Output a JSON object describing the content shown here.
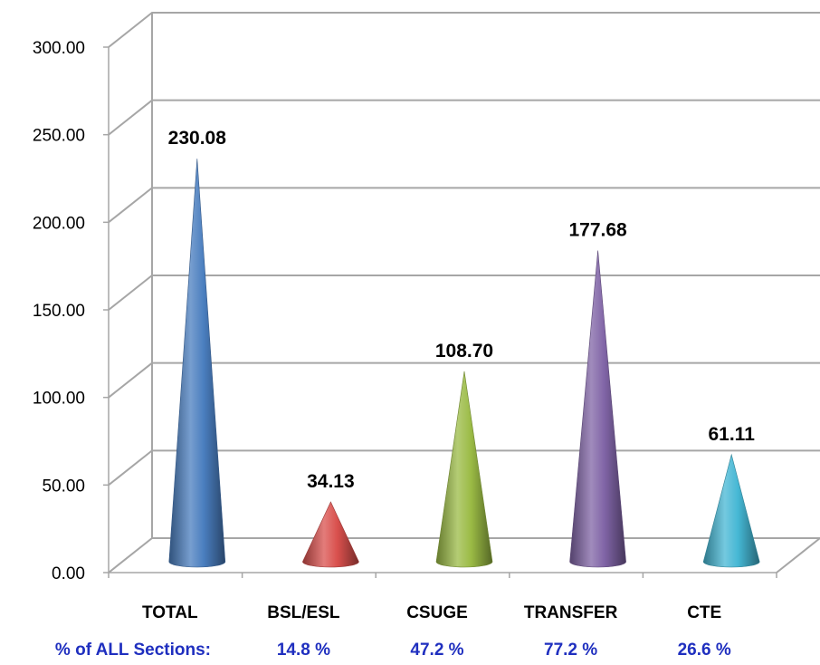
{
  "chart_data": {
    "type": "bar",
    "style": "3d-cone",
    "categories": [
      "TOTAL",
      "BSL/ESL",
      "CSUGE",
      "TRANSFER",
      "CTE"
    ],
    "values": [
      230.08,
      34.13,
      108.7,
      177.68,
      61.11
    ],
    "data_labels": [
      "230.08",
      "34.13",
      "108.70",
      "177.68",
      "61.11"
    ],
    "colors": [
      "#4a7ebf",
      "#d9504d",
      "#9bbb45",
      "#8064a6",
      "#45b7d4"
    ],
    "ylim": [
      0,
      300
    ],
    "yticks": [
      "0.00",
      "50.00",
      "100.00",
      "150.00",
      "200.00",
      "250.00",
      "300.00"
    ],
    "grid": true,
    "legend": "none",
    "footer": {
      "label": "% of ALL Sections:",
      "values": [
        "14.8 %",
        "47.2 %",
        "77.2 %",
        "26.6 %"
      ]
    }
  }
}
